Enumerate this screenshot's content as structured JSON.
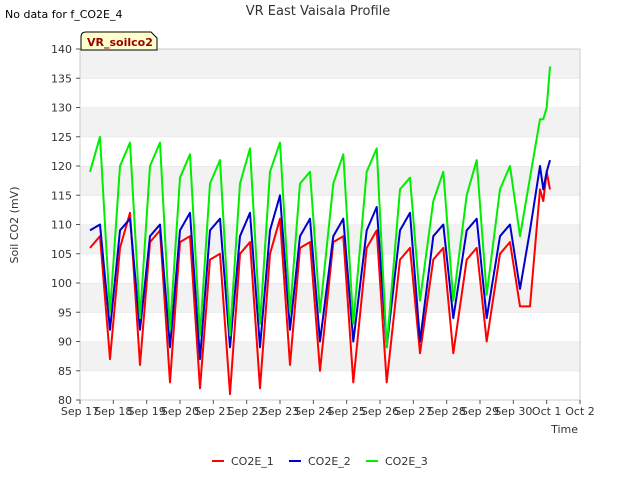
{
  "header": {
    "no_data_text": "No data for f_CO2E_4",
    "tag_label": "VR_soilco2"
  },
  "chart_data": {
    "type": "line",
    "title": "VR East Vaisala Profile",
    "xlabel": "Time",
    "ylabel": "Soil CO2 (mV)",
    "xlim": [
      17,
      32
    ],
    "ylim": [
      80,
      140
    ],
    "x_ticks": [
      17,
      18,
      19,
      20,
      21,
      22,
      23,
      24,
      25,
      26,
      27,
      28,
      29,
      30,
      31,
      32
    ],
    "x_tick_labels": [
      "Sep 17",
      "Sep 18",
      "Sep 19",
      "Sep 20",
      "Sep 21",
      "Sep 22",
      "Sep 23",
      "Sep 24",
      "Sep 25",
      "Sep 26",
      "Sep 27",
      "Sep 28",
      "Sep 29",
      "Sep 30",
      "Oct 1",
      "Oct 2"
    ],
    "y_ticks": [
      80,
      85,
      90,
      95,
      100,
      105,
      110,
      115,
      120,
      125,
      130,
      135,
      140
    ],
    "grid": "horizontal bands",
    "legend_position": "bottom-center",
    "series": [
      {
        "name": "CO2E_1",
        "color": "#ff0000",
        "x": [
          17.3,
          17.6,
          17.9,
          18.2,
          18.5,
          18.8,
          19.1,
          19.4,
          19.7,
          20.0,
          20.3,
          20.6,
          20.9,
          21.2,
          21.5,
          21.8,
          22.1,
          22.4,
          22.7,
          23.0,
          23.3,
          23.6,
          23.9,
          24.2,
          24.6,
          24.9,
          25.2,
          25.6,
          25.9,
          26.2,
          26.6,
          26.9,
          27.2,
          27.6,
          27.9,
          28.2,
          28.6,
          28.9,
          29.2,
          29.6,
          29.9,
          30.2,
          30.5,
          30.8,
          30.9,
          31.0,
          31.1
        ],
        "y": [
          106,
          108,
          87,
          106,
          112,
          86,
          107,
          109,
          83,
          107,
          108,
          82,
          104,
          105,
          81,
          105,
          107,
          82,
          105,
          111,
          86,
          106,
          107,
          85,
          107,
          108,
          83,
          106,
          109,
          83,
          104,
          106,
          88,
          104,
          106,
          88,
          104,
          106,
          90,
          105,
          107,
          96,
          96,
          116,
          114,
          119,
          116
        ]
      },
      {
        "name": "CO2E_2",
        "color": "#0000cc",
        "x": [
          17.3,
          17.6,
          17.9,
          18.2,
          18.5,
          18.8,
          19.1,
          19.4,
          19.7,
          20.0,
          20.3,
          20.6,
          20.9,
          21.2,
          21.5,
          21.8,
          22.1,
          22.4,
          22.7,
          23.0,
          23.3,
          23.6,
          23.9,
          24.2,
          24.6,
          24.9,
          25.2,
          25.6,
          25.9,
          26.2,
          26.6,
          26.9,
          27.2,
          27.6,
          27.9,
          28.2,
          28.6,
          28.9,
          29.2,
          29.6,
          29.9,
          30.2,
          30.5,
          30.8,
          30.9,
          31.0,
          31.1
        ],
        "y": [
          109,
          110,
          92,
          109,
          111,
          92,
          108,
          110,
          89,
          109,
          112,
          87,
          109,
          111,
          89,
          108,
          112,
          89,
          109,
          115,
          92,
          108,
          111,
          90,
          108,
          111,
          90,
          109,
          113,
          89,
          109,
          112,
          90,
          108,
          110,
          94,
          109,
          111,
          94,
          108,
          110,
          99,
          109,
          120,
          116,
          119,
          121
        ]
      },
      {
        "name": "CO2E_3",
        "color": "#00ee00",
        "x": [
          17.3,
          17.6,
          17.9,
          18.2,
          18.5,
          18.8,
          19.1,
          19.4,
          19.7,
          20.0,
          20.3,
          20.6,
          20.9,
          21.2,
          21.5,
          21.8,
          22.1,
          22.4,
          22.7,
          23.0,
          23.3,
          23.6,
          23.9,
          24.2,
          24.6,
          24.9,
          25.2,
          25.6,
          25.9,
          26.2,
          26.6,
          26.9,
          27.2,
          27.6,
          27.9,
          28.2,
          28.6,
          28.9,
          29.2,
          29.6,
          29.9,
          30.2,
          30.5,
          30.8,
          30.9,
          31.0,
          31.1
        ],
        "y": [
          119,
          125,
          95,
          120,
          124,
          94,
          120,
          124,
          92,
          118,
          122,
          91,
          117,
          121,
          91,
          117,
          123,
          93,
          119,
          124,
          95,
          117,
          119,
          95,
          117,
          122,
          93,
          119,
          123,
          89,
          116,
          118,
          97,
          114,
          119,
          97,
          115,
          121,
          98,
          116,
          120,
          108,
          118,
          128,
          128,
          130,
          137
        ]
      }
    ]
  }
}
